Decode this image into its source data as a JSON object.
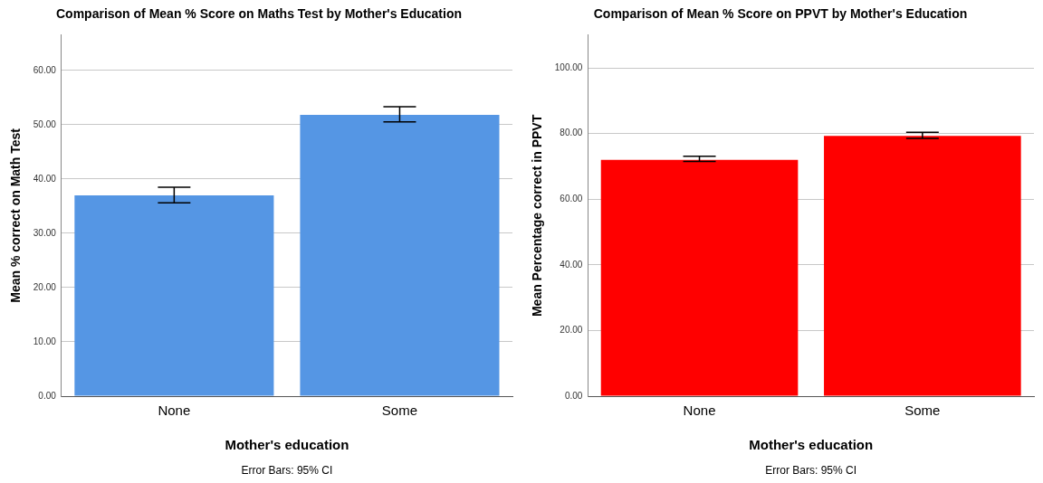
{
  "chart_data": [
    {
      "type": "bar",
      "title": "Comparison of Mean % Score on Maths Test by Mother's Education",
      "xlabel": "Mother's education",
      "ylabel": "Mean % correct on Math Test",
      "annotations": [
        "Error Bars: 95% CI"
      ],
      "categories": [
        "None",
        "Some"
      ],
      "values": [
        37.0,
        51.8
      ],
      "errors": [
        [
          35.6,
          38.5
        ],
        [
          50.5,
          53.3
        ]
      ],
      "color": "#5596e4",
      "ylim": [
        0,
        66.5
      ],
      "yticks": [
        {
          "value": 0,
          "label": "0.00"
        },
        {
          "value": 10,
          "label": "10.00"
        },
        {
          "value": 20,
          "label": "20.00"
        },
        {
          "value": 30,
          "label": "30.00"
        },
        {
          "value": 40,
          "label": "40.00"
        },
        {
          "value": 50,
          "label": "50.00"
        },
        {
          "value": 60,
          "label": "60.00"
        }
      ],
      "grid": "y",
      "legend": false
    },
    {
      "type": "bar",
      "title": "Comparison of Mean % Score on PPVT by Mother's Education",
      "xlabel": "Mother's education",
      "ylabel": "Mean Percentage correct in PPVT",
      "annotations": [
        "Error Bars: 95% CI"
      ],
      "categories": [
        "None",
        "Some"
      ],
      "values": [
        72.0,
        79.3
      ],
      "errors": [
        [
          71.5,
          73.1
        ],
        [
          78.5,
          80.4
        ]
      ],
      "color": "#ff0000",
      "ylim": [
        0,
        110
      ],
      "yticks": [
        {
          "value": 0,
          "label": "0.00"
        },
        {
          "value": 20,
          "label": "20.00"
        },
        {
          "value": 40,
          "label": "40.00"
        },
        {
          "value": 60,
          "label": "60.00"
        },
        {
          "value": 80,
          "label": "80.00"
        },
        {
          "value": 100,
          "label": "100.00"
        }
      ],
      "grid": "y",
      "legend": false
    }
  ]
}
